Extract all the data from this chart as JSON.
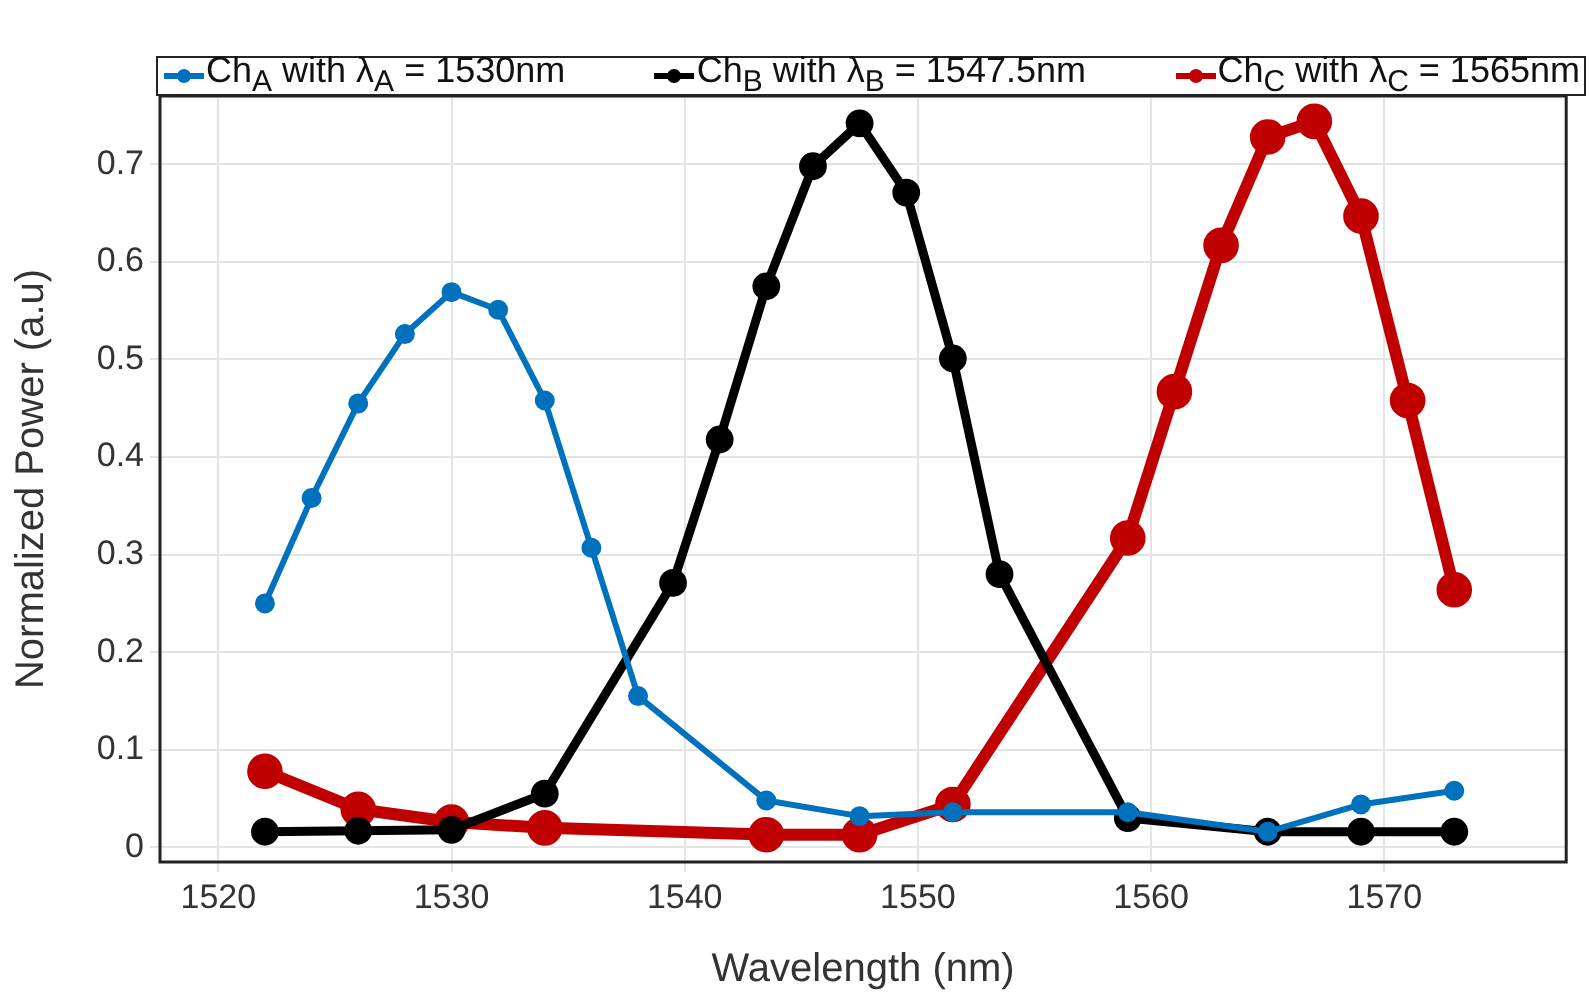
{
  "chart_data": {
    "type": "line",
    "xlabel": "Wavelength (nm)",
    "ylabel": "Normalized Power (a.u)",
    "xlim": [
      1517.5,
      1577.8
    ],
    "xticks": [
      1520,
      1530,
      1540,
      1550,
      1560,
      1570
    ],
    "ylim": [
      -0.015,
      0.77
    ],
    "yticks": [
      0,
      0.1,
      0.2,
      0.3,
      0.4,
      0.5,
      0.6,
      0.7
    ],
    "grid": true,
    "legend": "top",
    "marker": "circle",
    "line_style": "solid",
    "series": [
      {
        "name": "Ch$_{A}$ with λ$_{A}$ = 1530nm",
        "color": "#0072bd",
        "x": [
          1522,
          1524,
          1526,
          1528,
          1530,
          1532,
          1534,
          1536,
          1538,
          1543.5,
          1547.5,
          1551.5,
          1559,
          1565,
          1569,
          1573
        ],
        "values": [
          0.25,
          0.358,
          0.455,
          0.526,
          0.569,
          0.551,
          0.458,
          0.307,
          0.155,
          0.048,
          0.032,
          0.036,
          0.036,
          0.016,
          0.044,
          0.058
        ]
      },
      {
        "name": "Ch$_{B}$ with λ$_{B}$ = 1547.5nm",
        "color": "#000000",
        "x": [
          1522,
          1526,
          1530,
          1534,
          1539.5,
          1541.5,
          1543.5,
          1545.5,
          1547.5,
          1549.5,
          1551.5,
          1553.5,
          1559,
          1565,
          1569,
          1573
        ],
        "values": [
          0.016,
          0.017,
          0.018,
          0.055,
          0.271,
          0.418,
          0.575,
          0.698,
          0.742,
          0.671,
          0.501,
          0.28,
          0.03,
          0.016,
          0.016,
          0.016
        ]
      },
      {
        "name": "Ch$_{C}$ with λ$_{C}$ = 1565nm",
        "color": "#c00000",
        "x": [
          1522,
          1526,
          1530,
          1534,
          1543.5,
          1547.5,
          1551.5,
          1559,
          1561,
          1563,
          1565,
          1567,
          1569,
          1571,
          1573
        ],
        "values": [
          0.078,
          0.039,
          0.026,
          0.02,
          0.013,
          0.013,
          0.044,
          0.317,
          0.467,
          0.617,
          0.728,
          0.744,
          0.647,
          0.458,
          0.264
        ]
      }
    ]
  }
}
